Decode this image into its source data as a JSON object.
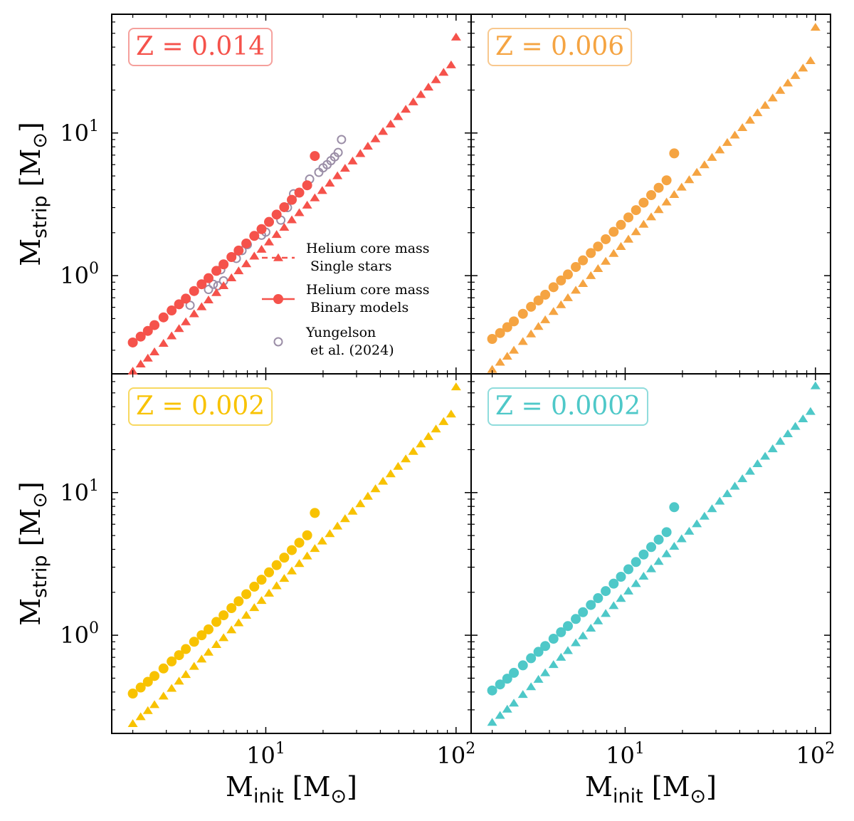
{
  "chart_data": {
    "type": "scatter",
    "layout": "2x2 grid, shared axes",
    "xscale": "log",
    "yscale": "log",
    "xlim": [
      1.55,
      120
    ],
    "ylim": [
      0.205,
      68
    ],
    "x_ticks": [
      {
        "value": 10,
        "base": "10",
        "exp": "1"
      },
      {
        "value": 100,
        "base": "10",
        "exp": "2"
      }
    ],
    "y_ticks": [
      {
        "value": 1,
        "base": "10",
        "exp": "0"
      },
      {
        "value": 10,
        "base": "10",
        "exp": "1"
      }
    ],
    "xlabel": {
      "main": "M",
      "sub": "init",
      "unit_open": " [M",
      "unit_sym": "⊙",
      "unit_close": "]"
    },
    "ylabel": {
      "main": "M",
      "sub": "strip",
      "unit_open": " [M",
      "unit_sym": "⊙",
      "unit_close": "]"
    },
    "legend": {
      "location": "center-right of top-left panel",
      "entries": [
        {
          "line1": "Helium core mass",
          "line2": " Single stars",
          "marker": "triangle",
          "linestyle": "dashed"
        },
        {
          "line1": "Helium core mass",
          "line2": " Binary models",
          "marker": "circle",
          "linestyle": "solid"
        },
        {
          "line1": "Yungelson",
          "line2": " et al. (2024)",
          "marker": "open-circle",
          "linestyle": "none"
        }
      ]
    },
    "yungelson_color": "#9b8ea7",
    "panels": [
      {
        "label": "Z = 0.014",
        "color": "#f5524b",
        "box_edge": "#f5a09c",
        "single_stars": {
          "x": [
            2.0,
            2.2,
            2.4,
            2.6,
            2.9,
            3.2,
            3.5,
            3.8,
            4.2,
            4.6,
            5.0,
            5.5,
            6.0,
            6.6,
            7.2,
            7.9,
            8.7,
            9.5,
            10.4,
            11.4,
            12.5,
            13.7,
            15.0,
            16.5,
            18.1,
            19.8,
            21.7,
            23.8,
            26.1,
            28.6,
            31.4,
            34.4,
            37.7,
            41.3,
            45.3,
            49.6,
            54.4,
            59.6,
            65.3,
            71.6,
            78.4,
            86.0,
            94.2,
            100.0
          ],
          "y": [
            0.214,
            0.24,
            0.264,
            0.292,
            0.335,
            0.378,
            0.425,
            0.474,
            0.54,
            0.605,
            0.675,
            0.76,
            0.85,
            0.965,
            1.08,
            1.21,
            1.37,
            1.53,
            1.72,
            1.94,
            2.18,
            2.46,
            2.76,
            3.12,
            3.51,
            3.95,
            4.45,
            5.01,
            5.65,
            6.36,
            7.17,
            8.07,
            9.1,
            10.25,
            11.54,
            13.0,
            14.65,
            16.5,
            18.6,
            20.95,
            23.6,
            26.6,
            30.0,
            47.0
          ]
        },
        "binary_models": {
          "x": [
            2.0,
            2.2,
            2.4,
            2.6,
            2.9,
            3.2,
            3.5,
            3.8,
            4.2,
            4.6,
            5.0,
            5.5,
            6.0,
            6.6,
            7.2,
            7.9,
            8.7,
            9.5,
            10.4,
            11.4,
            12.5,
            13.7,
            15.0,
            16.5,
            18.1
          ],
          "y": [
            0.34,
            0.374,
            0.41,
            0.45,
            0.51,
            0.57,
            0.63,
            0.69,
            0.78,
            0.87,
            0.96,
            1.08,
            1.2,
            1.35,
            1.5,
            1.68,
            1.9,
            2.12,
            2.38,
            2.68,
            3.02,
            3.4,
            3.82,
            4.3,
            6.9
          ]
        },
        "yungelson": {
          "x": [
            4.0,
            5.0,
            5.3,
            5.6,
            5.8,
            6.0,
            7.0,
            7.5,
            8.0,
            9.5,
            10.0,
            12.0,
            13.0,
            14.0,
            17.0,
            19.0,
            20.0,
            21.0,
            22.0,
            23.0,
            24.0,
            25.0
          ],
          "y": [
            0.62,
            0.8,
            0.87,
            0.85,
            1.1,
            0.92,
            1.32,
            1.5,
            1.65,
            1.92,
            2.02,
            2.45,
            3.0,
            3.75,
            4.75,
            5.3,
            5.7,
            6.0,
            6.4,
            6.8,
            7.3,
            9.0
          ]
        }
      },
      {
        "label": "Z = 0.006",
        "color": "#f5a442",
        "box_edge": "#f8c88e",
        "single_stars": {
          "x": [
            2.0,
            2.2,
            2.4,
            2.6,
            2.9,
            3.2,
            3.5,
            3.8,
            4.2,
            4.6,
            5.0,
            5.5,
            6.0,
            6.6,
            7.2,
            7.9,
            8.7,
            9.5,
            10.4,
            11.4,
            12.5,
            13.7,
            15.0,
            16.5,
            18.1,
            19.8,
            21.7,
            23.8,
            26.1,
            28.6,
            31.4,
            34.4,
            37.7,
            41.3,
            45.3,
            49.6,
            54.4,
            59.6,
            65.3,
            71.6,
            78.4,
            86.0,
            94.2,
            100.0
          ],
          "y": [
            0.22,
            0.247,
            0.272,
            0.3,
            0.345,
            0.39,
            0.44,
            0.49,
            0.56,
            0.625,
            0.7,
            0.79,
            0.88,
            1.0,
            1.12,
            1.26,
            1.43,
            1.6,
            1.8,
            2.03,
            2.29,
            2.58,
            2.9,
            3.28,
            3.7,
            4.17,
            4.7,
            5.3,
            5.98,
            6.74,
            7.6,
            8.57,
            9.66,
            10.9,
            12.28,
            13.85,
            15.62,
            17.6,
            19.86,
            22.4,
            25.25,
            28.5,
            32.1,
            55.0
          ]
        },
        "binary_models": {
          "x": [
            2.0,
            2.2,
            2.4,
            2.6,
            2.9,
            3.2,
            3.5,
            3.8,
            4.2,
            4.6,
            5.0,
            5.5,
            6.0,
            6.6,
            7.2,
            7.9,
            8.7,
            9.5,
            10.4,
            11.4,
            12.5,
            13.7,
            15.0,
            16.5,
            18.1
          ],
          "y": [
            0.36,
            0.396,
            0.435,
            0.478,
            0.54,
            0.605,
            0.67,
            0.735,
            0.83,
            0.925,
            1.02,
            1.15,
            1.28,
            1.44,
            1.6,
            1.8,
            2.03,
            2.27,
            2.56,
            2.88,
            3.25,
            3.67,
            4.13,
            4.66,
            7.2
          ]
        }
      },
      {
        "label": "Z = 0.002",
        "color": "#f8c200",
        "box_edge": "#f8d860",
        "single_stars": {
          "x": [
            2.0,
            2.2,
            2.4,
            2.6,
            2.9,
            3.2,
            3.5,
            3.8,
            4.2,
            4.6,
            5.0,
            5.5,
            6.0,
            6.6,
            7.2,
            7.9,
            8.7,
            9.5,
            10.4,
            11.4,
            12.5,
            13.7,
            15.0,
            16.5,
            18.1,
            19.8,
            21.7,
            23.8,
            26.1,
            28.6,
            31.4,
            34.4,
            37.7,
            41.3,
            45.3,
            49.6,
            54.4,
            59.6,
            65.3,
            71.6,
            78.4,
            86.0,
            94.2,
            100.0
          ],
          "y": [
            0.24,
            0.268,
            0.296,
            0.326,
            0.374,
            0.424,
            0.476,
            0.53,
            0.605,
            0.68,
            0.76,
            0.86,
            0.96,
            1.09,
            1.22,
            1.38,
            1.56,
            1.75,
            1.97,
            2.22,
            2.5,
            2.82,
            3.18,
            3.59,
            4.05,
            4.57,
            5.15,
            5.82,
            6.56,
            7.4,
            8.35,
            9.42,
            10.63,
            12.0,
            13.53,
            15.26,
            17.22,
            19.43,
            21.9,
            24.7,
            27.9,
            31.45,
            35.5,
            55.0
          ]
        },
        "binary_models": {
          "x": [
            2.0,
            2.2,
            2.4,
            2.6,
            2.9,
            3.2,
            3.5,
            3.8,
            4.2,
            4.6,
            5.0,
            5.5,
            6.0,
            6.6,
            7.2,
            7.9,
            8.7,
            9.5,
            10.4,
            11.4,
            12.5,
            13.7,
            15.0,
            16.5,
            18.1
          ],
          "y": [
            0.39,
            0.43,
            0.472,
            0.518,
            0.585,
            0.655,
            0.725,
            0.8,
            0.9,
            1.0,
            1.1,
            1.24,
            1.38,
            1.55,
            1.73,
            1.94,
            2.19,
            2.45,
            2.76,
            3.1,
            3.5,
            3.95,
            4.45,
            5.02,
            7.2
          ]
        }
      },
      {
        "label": "Z = 0.0002",
        "color": "#4ec8c8",
        "box_edge": "#8fdcdc",
        "single_stars": {
          "x": [
            2.0,
            2.2,
            2.4,
            2.6,
            2.9,
            3.2,
            3.5,
            3.8,
            4.2,
            4.6,
            5.0,
            5.5,
            6.0,
            6.6,
            7.2,
            7.9,
            8.7,
            9.5,
            10.4,
            11.4,
            12.5,
            13.7,
            15.0,
            16.5,
            18.1,
            19.8,
            21.7,
            23.8,
            26.1,
            28.6,
            31.4,
            34.4,
            37.7,
            41.3,
            45.3,
            49.6,
            54.4,
            59.6,
            65.3,
            71.6,
            78.4,
            86.0,
            94.2,
            100.0
          ],
          "y": [
            0.245,
            0.274,
            0.303,
            0.334,
            0.384,
            0.435,
            0.49,
            0.545,
            0.622,
            0.7,
            0.78,
            0.885,
            0.99,
            1.12,
            1.26,
            1.42,
            1.61,
            1.81,
            2.04,
            2.3,
            2.59,
            2.92,
            3.29,
            3.72,
            4.2,
            4.74,
            5.35,
            6.04,
            6.82,
            7.7,
            8.7,
            9.82,
            11.08,
            12.5,
            14.1,
            15.92,
            17.96,
            20.26,
            22.86,
            25.8,
            29.1,
            32.85,
            37.0,
            56.0
          ]
        },
        "binary_models": {
          "x": [
            2.0,
            2.2,
            2.4,
            2.6,
            2.9,
            3.2,
            3.5,
            3.8,
            4.2,
            4.6,
            5.0,
            5.5,
            6.0,
            6.6,
            7.2,
            7.9,
            8.7,
            9.5,
            10.4,
            11.4,
            12.5,
            13.7,
            15.0,
            16.5,
            18.1
          ],
          "y": [
            0.41,
            0.452,
            0.496,
            0.545,
            0.615,
            0.69,
            0.765,
            0.84,
            0.945,
            1.05,
            1.16,
            1.3,
            1.45,
            1.63,
            1.82,
            2.04,
            2.3,
            2.57,
            2.9,
            3.26,
            3.68,
            4.15,
            4.68,
            5.28,
            7.9
          ]
        }
      }
    ]
  }
}
